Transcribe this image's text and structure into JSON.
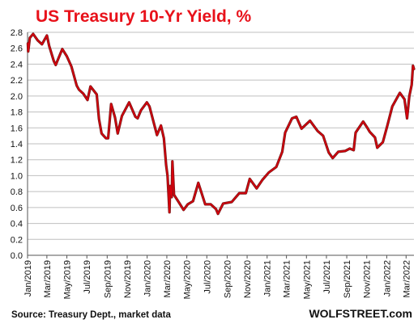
{
  "chart_data": {
    "type": "line",
    "title": "US Treasury  10-Yr Yield, %",
    "xlabel": "",
    "ylabel": "",
    "ylim": [
      0,
      2.8
    ],
    "yticks": [
      "2.8",
      "2.6",
      "2.4",
      "2.2",
      "2.0",
      "1.8",
      "1.6",
      "1.4",
      "1.2",
      "1.0",
      "0.8",
      "0.6",
      "0.4",
      "0.2",
      "0.0"
    ],
    "xlim": [
      "2019-01-01",
      "2022-03-25"
    ],
    "xticks": [
      {
        "date": "2019-01-01",
        "label": "Jan/2019"
      },
      {
        "date": "2019-03-01",
        "label": "Mar/2019"
      },
      {
        "date": "2019-05-01",
        "label": "May/2019"
      },
      {
        "date": "2019-07-01",
        "label": "Jul/2019"
      },
      {
        "date": "2019-09-01",
        "label": "Sep/2019"
      },
      {
        "date": "2019-11-01",
        "label": "Nov/2019"
      },
      {
        "date": "2020-01-01",
        "label": "Jan/2020"
      },
      {
        "date": "2020-03-01",
        "label": "Mar/2020"
      },
      {
        "date": "2020-05-01",
        "label": "May/2020"
      },
      {
        "date": "2020-07-01",
        "label": "Jul/2020"
      },
      {
        "date": "2020-09-01",
        "label": "Sep/2020"
      },
      {
        "date": "2020-11-01",
        "label": "Nov/2020"
      },
      {
        "date": "2021-01-01",
        "label": "Jan/2021"
      },
      {
        "date": "2021-03-01",
        "label": "Mar/2021"
      },
      {
        "date": "2021-05-01",
        "label": "May/2021"
      },
      {
        "date": "2021-07-01",
        "label": "Jul/2021"
      },
      {
        "date": "2021-09-01",
        "label": "Sep/2021"
      },
      {
        "date": "2021-11-01",
        "label": "Nov/2021"
      },
      {
        "date": "2022-01-01",
        "label": "Jan/2022"
      },
      {
        "date": "2022-03-01",
        "label": "Mar/2022"
      }
    ],
    "grid": {
      "horizontal": true,
      "vertical": false
    },
    "series": [
      {
        "color": "#d8000c",
        "points": [
          {
            "x": "2019-01-02",
            "y": 2.66
          },
          {
            "x": "2019-01-03",
            "y": 2.56
          },
          {
            "x": "2019-01-08",
            "y": 2.73
          },
          {
            "x": "2019-01-18",
            "y": 2.78
          },
          {
            "x": "2019-02-01",
            "y": 2.7
          },
          {
            "x": "2019-02-14",
            "y": 2.65
          },
          {
            "x": "2019-03-01",
            "y": 2.76
          },
          {
            "x": "2019-03-08",
            "y": 2.63
          },
          {
            "x": "2019-03-22",
            "y": 2.44
          },
          {
            "x": "2019-03-28",
            "y": 2.39
          },
          {
            "x": "2019-04-17",
            "y": 2.59
          },
          {
            "x": "2019-05-01",
            "y": 2.5
          },
          {
            "x": "2019-05-15",
            "y": 2.37
          },
          {
            "x": "2019-05-31",
            "y": 2.13
          },
          {
            "x": "2019-06-07",
            "y": 2.08
          },
          {
            "x": "2019-06-20",
            "y": 2.03
          },
          {
            "x": "2019-07-03",
            "y": 1.95
          },
          {
            "x": "2019-07-12",
            "y": 2.12
          },
          {
            "x": "2019-07-31",
            "y": 2.02
          },
          {
            "x": "2019-08-07",
            "y": 1.71
          },
          {
            "x": "2019-08-15",
            "y": 1.53
          },
          {
            "x": "2019-08-28",
            "y": 1.47
          },
          {
            "x": "2019-09-04",
            "y": 1.47
          },
          {
            "x": "2019-09-13",
            "y": 1.9
          },
          {
            "x": "2019-09-25",
            "y": 1.73
          },
          {
            "x": "2019-10-03",
            "y": 1.53
          },
          {
            "x": "2019-10-16",
            "y": 1.75
          },
          {
            "x": "2019-11-07",
            "y": 1.92
          },
          {
            "x": "2019-11-26",
            "y": 1.74
          },
          {
            "x": "2019-12-03",
            "y": 1.72
          },
          {
            "x": "2019-12-13",
            "y": 1.82
          },
          {
            "x": "2019-12-31",
            "y": 1.92
          },
          {
            "x": "2020-01-08",
            "y": 1.87
          },
          {
            "x": "2020-01-31",
            "y": 1.51
          },
          {
            "x": "2020-02-12",
            "y": 1.63
          },
          {
            "x": "2020-02-21",
            "y": 1.47
          },
          {
            "x": "2020-02-28",
            "y": 1.13
          },
          {
            "x": "2020-03-03",
            "y": 1.0
          },
          {
            "x": "2020-03-09",
            "y": 0.54
          },
          {
            "x": "2020-03-11",
            "y": 0.87
          },
          {
            "x": "2020-03-16",
            "y": 0.73
          },
          {
            "x": "2020-03-18",
            "y": 1.18
          },
          {
            "x": "2020-03-23",
            "y": 0.76
          },
          {
            "x": "2020-04-06",
            "y": 0.67
          },
          {
            "x": "2020-04-21",
            "y": 0.57
          },
          {
            "x": "2020-05-04",
            "y": 0.64
          },
          {
            "x": "2020-05-20",
            "y": 0.68
          },
          {
            "x": "2020-06-05",
            "y": 0.91
          },
          {
            "x": "2020-06-26",
            "y": 0.64
          },
          {
            "x": "2020-07-13",
            "y": 0.64
          },
          {
            "x": "2020-07-29",
            "y": 0.58
          },
          {
            "x": "2020-08-04",
            "y": 0.52
          },
          {
            "x": "2020-08-20",
            "y": 0.65
          },
          {
            "x": "2020-09-15",
            "y": 0.67
          },
          {
            "x": "2020-10-08",
            "y": 0.78
          },
          {
            "x": "2020-10-28",
            "y": 0.78
          },
          {
            "x": "2020-11-09",
            "y": 0.96
          },
          {
            "x": "2020-11-30",
            "y": 0.84
          },
          {
            "x": "2020-12-18",
            "y": 0.95
          },
          {
            "x": "2021-01-06",
            "y": 1.04
          },
          {
            "x": "2021-01-29",
            "y": 1.11
          },
          {
            "x": "2021-02-16",
            "y": 1.3
          },
          {
            "x": "2021-02-25",
            "y": 1.54
          },
          {
            "x": "2021-03-18",
            "y": 1.72
          },
          {
            "x": "2021-03-31",
            "y": 1.74
          },
          {
            "x": "2021-04-16",
            "y": 1.59
          },
          {
            "x": "2021-05-12",
            "y": 1.69
          },
          {
            "x": "2021-06-04",
            "y": 1.56
          },
          {
            "x": "2021-06-21",
            "y": 1.5
          },
          {
            "x": "2021-07-08",
            "y": 1.29
          },
          {
            "x": "2021-07-20",
            "y": 1.22
          },
          {
            "x": "2021-08-06",
            "y": 1.3
          },
          {
            "x": "2021-08-27",
            "y": 1.31
          },
          {
            "x": "2021-09-10",
            "y": 1.34
          },
          {
            "x": "2021-09-22",
            "y": 1.32
          },
          {
            "x": "2021-09-28",
            "y": 1.54
          },
          {
            "x": "2021-10-21",
            "y": 1.68
          },
          {
            "x": "2021-11-03",
            "y": 1.6
          },
          {
            "x": "2021-11-10",
            "y": 1.55
          },
          {
            "x": "2021-11-26",
            "y": 1.48
          },
          {
            "x": "2021-12-03",
            "y": 1.35
          },
          {
            "x": "2021-12-20",
            "y": 1.42
          },
          {
            "x": "2022-01-03",
            "y": 1.63
          },
          {
            "x": "2022-01-18",
            "y": 1.87
          },
          {
            "x": "2022-02-10",
            "y": 2.04
          },
          {
            "x": "2022-02-24",
            "y": 1.96
          },
          {
            "x": "2022-03-04",
            "y": 1.72
          },
          {
            "x": "2022-03-11",
            "y": 2.0
          },
          {
            "x": "2022-03-18",
            "y": 2.14
          },
          {
            "x": "2022-03-22",
            "y": 2.38
          },
          {
            "x": "2022-03-25",
            "y": 2.34
          }
        ]
      }
    ]
  },
  "footer": {
    "source": "Source: Treasury Dept., market data",
    "brand": "WOLFSTREET.com"
  }
}
